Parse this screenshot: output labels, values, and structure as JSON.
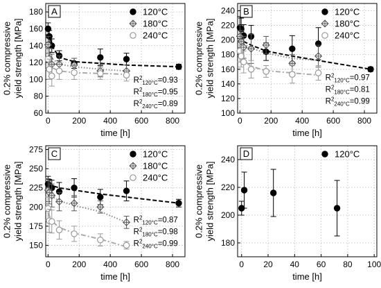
{
  "chart_data": [
    {
      "type": "scatter",
      "panel": "A",
      "xlabel": "time [h]",
      "ylabel": "0.2% compressive yield strength [MPa]",
      "xlim": [
        -15,
        880
      ],
      "ylim": [
        60,
        190
      ],
      "xticks": [
        0,
        200,
        400,
        600,
        800
      ],
      "yticks": [
        60,
        80,
        100,
        120,
        140,
        160,
        180
      ],
      "grid": true,
      "legend": "top-right",
      "series": [
        {
          "name": "120°C",
          "marker": "filled-circle",
          "color": "#000000",
          "line": "dashed",
          "trend_color": "#000000",
          "x": [
            0,
            8,
            24,
            72,
            168,
            336,
            504,
            840
          ],
          "y": [
            160,
            151,
            140,
            128,
            119,
            126,
            124,
            115
          ],
          "err": [
            7,
            7,
            8,
            6,
            6,
            10,
            7,
            3
          ],
          "trend": {
            "x": [
              0,
              24,
              72,
              168,
              336,
              504,
              840
            ],
            "y": [
              162,
              140,
              126,
              121,
              119,
              117,
              115
            ]
          }
        },
        {
          "name": "180°C",
          "marker": "crossed-diamond",
          "color": "#555555",
          "line": "dotted",
          "trend_color": "#888888",
          "x": [
            0,
            8,
            24,
            72,
            168,
            336,
            504
          ],
          "y": [
            141,
            125,
            118,
            118,
            117,
            110,
            110
          ],
          "err": [
            10,
            12,
            12,
            10,
            8,
            7,
            7
          ],
          "trend": {
            "x": [
              0,
              24,
              72,
              168,
              336,
              504
            ],
            "y": [
              143,
              125,
              118,
              115,
              112,
              110
            ]
          }
        },
        {
          "name": "240°C",
          "marker": "open-circle",
          "color": "#999999",
          "line": "dashdot",
          "trend_color": "#aaaaaa",
          "x": [
            0,
            8,
            24,
            72,
            168,
            336,
            504
          ],
          "y": [
            124,
            112,
            104,
            110,
            108,
            107,
            105
          ],
          "err": [
            12,
            12,
            12,
            10,
            8,
            7,
            7
          ],
          "trend": {
            "x": [
              0,
              24,
              72,
              168,
              336,
              504
            ],
            "y": [
              125,
              114,
              110,
              108,
              107,
              106
            ]
          }
        }
      ],
      "r2": [
        {
          "sub": "120°C",
          "value": "0.93"
        },
        {
          "sub": "180°C",
          "value": "0.95"
        },
        {
          "sub": "240°C",
          "value": "0.89"
        }
      ]
    },
    {
      "type": "scatter",
      "panel": "B",
      "xlabel": "time [h]",
      "ylabel": "0.2% compressive yield strength [MPa]",
      "xlim": [
        -15,
        880
      ],
      "ylim": [
        100,
        250
      ],
      "xticks": [
        0,
        200,
        400,
        600,
        800
      ],
      "yticks": [
        100,
        120,
        140,
        160,
        180,
        200,
        220,
        240
      ],
      "grid": true,
      "legend": "top-right",
      "series": [
        {
          "name": "120°C",
          "marker": "filled-circle",
          "color": "#000000",
          "line": "dashed",
          "trend_color": "#000000",
          "x": [
            0,
            8,
            24,
            72,
            168,
            336,
            504,
            840
          ],
          "y": [
            217,
            215,
            206,
            205,
            184,
            188,
            195,
            160
          ],
          "err": [
            15,
            15,
            15,
            15,
            12,
            18,
            22,
            3
          ],
          "trend": {
            "x": [
              0,
              24,
              72,
              168,
              336,
              504,
              840
            ],
            "y": [
              205,
              198,
              193,
              185,
              178,
              172,
              160
            ]
          }
        },
        {
          "name": "180°C",
          "marker": "crossed-diamond",
          "color": "#555555",
          "line": "dotted",
          "trend_color": "#888888",
          "x": [
            0,
            8,
            24,
            72,
            168,
            336,
            504
          ],
          "y": [
            205,
            198,
            190,
            188,
            193,
            168,
            178
          ],
          "err": [
            15,
            15,
            15,
            20,
            12,
            12,
            15
          ],
          "trend": {
            "x": [
              0,
              24,
              72,
              168,
              336,
              504
            ],
            "y": [
              200,
              195,
              189,
              182,
              175,
              172
            ]
          }
        },
        {
          "name": "240°C",
          "marker": "open-circle",
          "color": "#999999",
          "line": "dashdot",
          "trend_color": "#aaaaaa",
          "x": [
            0,
            8,
            24,
            72,
            168,
            336,
            504
          ],
          "y": [
            185,
            178,
            170,
            160,
            157,
            153,
            155
          ],
          "err": [
            15,
            15,
            15,
            12,
            8,
            12,
            10
          ],
          "trend": {
            "x": [
              0,
              24,
              72,
              168,
              336,
              504
            ],
            "y": [
              180,
              172,
              164,
              158,
              155,
              152
            ]
          }
        }
      ],
      "r2": [
        {
          "sub": "120°C",
          "value": "0.97"
        },
        {
          "sub": "180°C",
          "value": "0.81"
        },
        {
          "sub": "240°C",
          "value": "0.99"
        }
      ]
    },
    {
      "type": "scatter",
      "panel": "C",
      "xlabel": "time [h]",
      "ylabel": "0.2% compressive yield strength [MPa]",
      "xlim": [
        -15,
        880
      ],
      "ylim": [
        135,
        280
      ],
      "xticks": [
        0,
        200,
        400,
        600,
        800
      ],
      "yticks": [
        150,
        175,
        200,
        225,
        250,
        275
      ],
      "grid": true,
      "legend": "top-right",
      "series": [
        {
          "name": "120°C",
          "marker": "filled-circle",
          "color": "#000000",
          "line": "dashed",
          "trend_color": "#000000",
          "x": [
            0,
            8,
            24,
            72,
            168,
            336,
            504,
            840
          ],
          "y": [
            230,
            228,
            225,
            220,
            225,
            213,
            221,
            205
          ],
          "err": [
            10,
            8,
            10,
            12,
            12,
            10,
            13,
            5
          ],
          "trend": {
            "x": [
              0,
              24,
              72,
              168,
              336,
              504,
              840
            ],
            "y": [
              230,
              228,
              225,
              222,
              217,
              213,
              205
            ]
          }
        },
        {
          "name": "180°C",
          "marker": "crossed-diamond",
          "color": "#555555",
          "line": "dotted",
          "trend_color": "#888888",
          "x": [
            0,
            8,
            24,
            72,
            168,
            336,
            504
          ],
          "y": [
            222,
            219,
            215,
            207,
            205,
            200,
            180
          ],
          "err": [
            15,
            15,
            15,
            12,
            10,
            8,
            8
          ],
          "trend": {
            "x": [
              0,
              24,
              72,
              168,
              336,
              504
            ],
            "y": [
              220,
              214,
              208,
              202,
              194,
              180
            ]
          }
        },
        {
          "name": "240°C",
          "marker": "open-circle",
          "color": "#999999",
          "line": "dashdot",
          "trend_color": "#aaaaaa",
          "x": [
            0,
            8,
            24,
            72,
            168,
            336,
            504
          ],
          "y": [
            198,
            182,
            181,
            170,
            165,
            157,
            150
          ],
          "err": [
            15,
            15,
            15,
            12,
            10,
            8,
            5
          ],
          "trend": {
            "x": [
              0,
              24,
              72,
              168,
              336,
              504
            ],
            "y": [
              192,
              182,
              173,
              166,
              158,
              148
            ]
          }
        }
      ],
      "r2": [
        {
          "sub": "120°C",
          "value": "0.87"
        },
        {
          "sub": "180°C",
          "value": "0.98"
        },
        {
          "sub": "240°C",
          "value": "0.99"
        }
      ]
    },
    {
      "type": "scatter",
      "panel": "D",
      "xlabel": "time [h]",
      "ylabel": "0.2% compressive yield strength [MPa]",
      "xlim": [
        -3,
        102
      ],
      "ylim": [
        170,
        250
      ],
      "xticks": [
        0,
        20,
        40,
        60,
        80,
        100
      ],
      "yticks": [
        180,
        200,
        220,
        240
      ],
      "grid": true,
      "legend": "top-right",
      "series": [
        {
          "name": "120°C",
          "marker": "filled-circle",
          "color": "#000000",
          "line": "none",
          "x": [
            0,
            2,
            24,
            72
          ],
          "y": [
            205,
            218,
            216,
            205
          ],
          "err": [
            5,
            13,
            17,
            20
          ]
        }
      ],
      "r2": []
    }
  ]
}
